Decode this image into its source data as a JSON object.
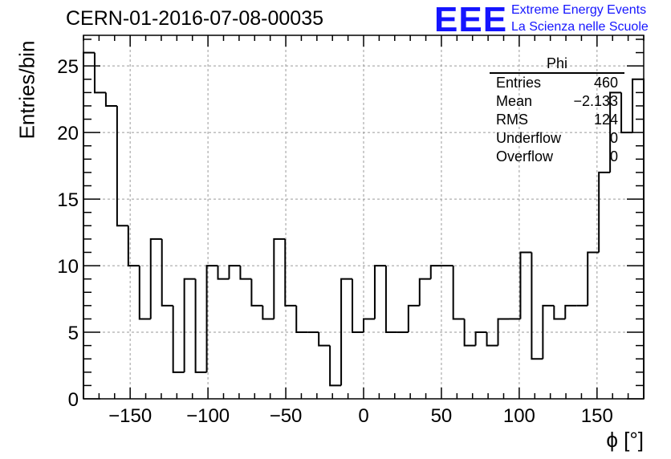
{
  "title": "CERN-01-2016-07-08-00035",
  "logo": {
    "mark": "EEE",
    "line1": "Extreme Energy Events",
    "line2": "La Scienza nelle Scuole",
    "color": "#1515ff"
  },
  "stats": {
    "title": "Phi",
    "rows": [
      {
        "label": "Entries",
        "value": "460"
      },
      {
        "label": "Mean",
        "value": "−2.133"
      },
      {
        "label": "RMS",
        "value": "124"
      },
      {
        "label": "Underflow",
        "value": "0"
      },
      {
        "label": "Overflow",
        "value": "0"
      }
    ]
  },
  "chart_data": {
    "type": "bar",
    "style": "step-histogram",
    "title": "CERN-01-2016-07-08-00035",
    "xlabel": "ϕ [°]",
    "ylabel": "Entries/bin",
    "xlim": [
      -180,
      180
    ],
    "ylim": [
      0,
      27.3
    ],
    "bin_width": 7.2,
    "values": [
      26,
      23,
      22,
      13,
      10,
      6,
      12,
      7,
      2,
      9,
      2,
      10,
      9,
      10,
      9,
      7,
      6,
      12,
      7,
      5,
      5,
      4,
      1,
      9,
      5,
      6,
      10,
      5,
      5,
      7,
      9,
      10,
      10,
      6,
      4,
      5,
      4,
      6,
      6,
      11,
      3,
      7,
      6,
      7,
      7,
      11,
      17,
      23,
      20,
      24
    ],
    "xticks": [
      -150,
      -100,
      -50,
      0,
      50,
      100,
      150
    ],
    "xtick_labels": [
      "−150",
      "−100",
      "−50",
      "0",
      "50",
      "100",
      "150"
    ],
    "yticks": [
      0,
      5,
      10,
      15,
      20,
      25
    ],
    "ytick_labels": [
      "0",
      "5",
      "10",
      "15",
      "20",
      "25"
    ],
    "grid": true,
    "line_color": "#000000",
    "grid_color": "#9a9a9a"
  }
}
